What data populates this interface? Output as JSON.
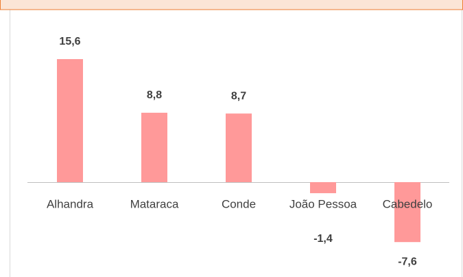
{
  "chart_data": {
    "type": "bar",
    "categories": [
      "Alhandra",
      "Mataraca",
      "Conde",
      "João Pessoa",
      "Cabedelo"
    ],
    "values": [
      15.6,
      8.8,
      8.7,
      -1.4,
      -7.6
    ],
    "value_labels": [
      "15,6",
      "8,8",
      "8,7",
      "-1,4",
      "-7,6"
    ],
    "color": "#ff9999"
  }
}
